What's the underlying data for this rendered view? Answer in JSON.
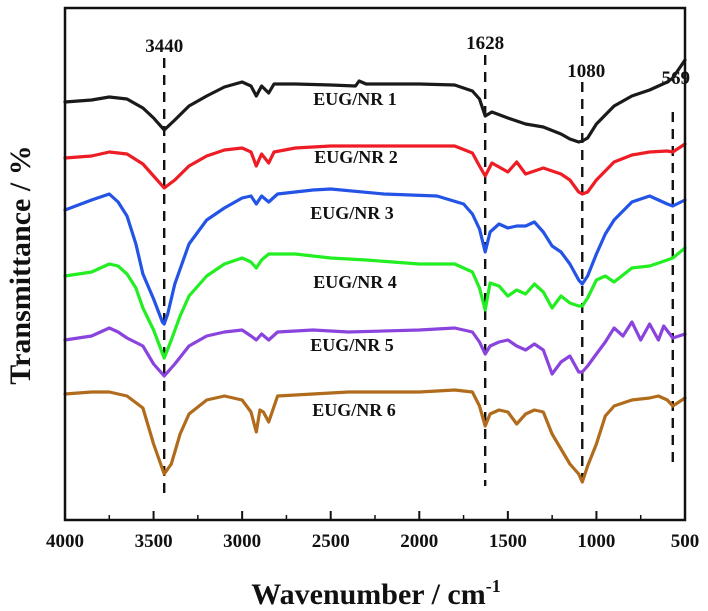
{
  "chart_data": {
    "type": "line",
    "title": "",
    "xlabel": "Wavenumber / cm",
    "xlabel_superscript": "-1",
    "ylabel": "Transmittance / %",
    "xlim": [
      4000,
      500
    ],
    "x_reversed": true,
    "y_ticks_shown": false,
    "grid": false,
    "xticks": [
      4000,
      3500,
      3000,
      2500,
      2000,
      1500,
      1000,
      500
    ],
    "xtick_labels": [
      "4000",
      "3500",
      "3000",
      "2500",
      "2000",
      "1500",
      "1000",
      "500"
    ],
    "peak_markers": [
      {
        "label": "3440",
        "x": 3440
      },
      {
        "label": "1628",
        "x": 1628
      },
      {
        "label": "1080",
        "x": 1080
      },
      {
        "label": "569",
        "x": 569
      }
    ],
    "series": [
      {
        "name": "EUG/NR 1",
        "color": "#1a1a1a",
        "offset": 86,
        "points": [
          [
            4000,
            8
          ],
          [
            3850,
            6
          ],
          [
            3750,
            3
          ],
          [
            3650,
            5
          ],
          [
            3560,
            14
          ],
          [
            3500,
            24
          ],
          [
            3440,
            36
          ],
          [
            3380,
            26
          ],
          [
            3300,
            12
          ],
          [
            3200,
            2
          ],
          [
            3100,
            -7
          ],
          [
            3000,
            -12
          ],
          [
            2950,
            -8
          ],
          [
            2920,
            2
          ],
          [
            2890,
            -8
          ],
          [
            2850,
            -1
          ],
          [
            2820,
            -10
          ],
          [
            2700,
            -10
          ],
          [
            2500,
            -9
          ],
          [
            2360,
            -8
          ],
          [
            2340,
            -13
          ],
          [
            2300,
            -10
          ],
          [
            2000,
            -10
          ],
          [
            1800,
            -9
          ],
          [
            1700,
            -3
          ],
          [
            1660,
            5
          ],
          [
            1628,
            22
          ],
          [
            1590,
            18
          ],
          [
            1500,
            24
          ],
          [
            1400,
            30
          ],
          [
            1300,
            33
          ],
          [
            1200,
            40
          ],
          [
            1150,
            45
          ],
          [
            1100,
            48
          ],
          [
            1080,
            47
          ],
          [
            1050,
            44
          ],
          [
            1000,
            30
          ],
          [
            900,
            12
          ],
          [
            800,
            2
          ],
          [
            700,
            -4
          ],
          [
            600,
            -12
          ],
          [
            569,
            -16
          ],
          [
            500,
            -34
          ]
        ]
      },
      {
        "name": "EUG/NR 2",
        "color": "#ee1c24",
        "offset": 150,
        "points": [
          [
            4000,
            0
          ],
          [
            3850,
            -2
          ],
          [
            3750,
            -6
          ],
          [
            3650,
            -4
          ],
          [
            3560,
            6
          ],
          [
            3500,
            18
          ],
          [
            3440,
            30
          ],
          [
            3380,
            22
          ],
          [
            3300,
            8
          ],
          [
            3200,
            -2
          ],
          [
            3100,
            -8
          ],
          [
            3000,
            -10
          ],
          [
            2950,
            -6
          ],
          [
            2920,
            8
          ],
          [
            2890,
            -4
          ],
          [
            2850,
            5
          ],
          [
            2820,
            -6
          ],
          [
            2700,
            -10
          ],
          [
            2500,
            -12
          ],
          [
            2000,
            -12
          ],
          [
            1800,
            -12
          ],
          [
            1700,
            -5
          ],
          [
            1660,
            8
          ],
          [
            1628,
            18
          ],
          [
            1590,
            5
          ],
          [
            1500,
            14
          ],
          [
            1450,
            4
          ],
          [
            1400,
            16
          ],
          [
            1300,
            10
          ],
          [
            1200,
            16
          ],
          [
            1150,
            22
          ],
          [
            1100,
            34
          ],
          [
            1080,
            36
          ],
          [
            1050,
            34
          ],
          [
            1000,
            22
          ],
          [
            900,
            4
          ],
          [
            800,
            -3
          ],
          [
            700,
            -6
          ],
          [
            600,
            -7
          ],
          [
            569,
            -6
          ],
          [
            500,
            -14
          ]
        ]
      },
      {
        "name": "EUG/NR 3",
        "color": "#2454e6",
        "offset": 206,
        "points": [
          [
            4000,
            -4
          ],
          [
            3850,
            -14
          ],
          [
            3750,
            -20
          ],
          [
            3700,
            -12
          ],
          [
            3650,
            2
          ],
          [
            3600,
            30
          ],
          [
            3560,
            60
          ],
          [
            3500,
            85
          ],
          [
            3450,
            108
          ],
          [
            3440,
            110
          ],
          [
            3420,
            100
          ],
          [
            3380,
            70
          ],
          [
            3300,
            30
          ],
          [
            3200,
            6
          ],
          [
            3100,
            -6
          ],
          [
            3000,
            -16
          ],
          [
            2950,
            -18
          ],
          [
            2920,
            -10
          ],
          [
            2890,
            -18
          ],
          [
            2850,
            -12
          ],
          [
            2800,
            -20
          ],
          [
            2600,
            -24
          ],
          [
            2500,
            -25
          ],
          [
            2200,
            -20
          ],
          [
            1900,
            -18
          ],
          [
            1750,
            -10
          ],
          [
            1700,
            0
          ],
          [
            1660,
            15
          ],
          [
            1628,
            38
          ],
          [
            1600,
            18
          ],
          [
            1550,
            10
          ],
          [
            1500,
            14
          ],
          [
            1450,
            12
          ],
          [
            1400,
            12
          ],
          [
            1350,
            8
          ],
          [
            1300,
            18
          ],
          [
            1250,
            32
          ],
          [
            1200,
            38
          ],
          [
            1150,
            50
          ],
          [
            1100,
            66
          ],
          [
            1080,
            70
          ],
          [
            1050,
            62
          ],
          [
            1000,
            40
          ],
          [
            950,
            20
          ],
          [
            900,
            6
          ],
          [
            800,
            -12
          ],
          [
            700,
            -18
          ],
          [
            600,
            -10
          ],
          [
            569,
            -8
          ],
          [
            500,
            -14
          ]
        ]
      },
      {
        "name": "EUG/NR 4",
        "color": "#22ee22",
        "offset": 260,
        "points": [
          [
            4000,
            8
          ],
          [
            3850,
            4
          ],
          [
            3750,
            -4
          ],
          [
            3700,
            -2
          ],
          [
            3650,
            6
          ],
          [
            3600,
            20
          ],
          [
            3560,
            40
          ],
          [
            3500,
            62
          ],
          [
            3440,
            90
          ],
          [
            3400,
            72
          ],
          [
            3350,
            48
          ],
          [
            3300,
            28
          ],
          [
            3200,
            8
          ],
          [
            3100,
            -4
          ],
          [
            3000,
            -10
          ],
          [
            2950,
            -6
          ],
          [
            2920,
            0
          ],
          [
            2890,
            -8
          ],
          [
            2850,
            -14
          ],
          [
            2700,
            -14
          ],
          [
            2500,
            -10
          ],
          [
            2300,
            -8
          ],
          [
            2000,
            -4
          ],
          [
            1800,
            -4
          ],
          [
            1700,
            4
          ],
          [
            1660,
            20
          ],
          [
            1628,
            42
          ],
          [
            1600,
            15
          ],
          [
            1550,
            18
          ],
          [
            1500,
            28
          ],
          [
            1450,
            22
          ],
          [
            1400,
            26
          ],
          [
            1350,
            16
          ],
          [
            1300,
            24
          ],
          [
            1250,
            40
          ],
          [
            1200,
            28
          ],
          [
            1150,
            35
          ],
          [
            1100,
            38
          ],
          [
            1080,
            38
          ],
          [
            1050,
            30
          ],
          [
            1000,
            12
          ],
          [
            950,
            8
          ],
          [
            900,
            14
          ],
          [
            800,
            0
          ],
          [
            700,
            -2
          ],
          [
            600,
            -8
          ],
          [
            569,
            -10
          ],
          [
            500,
            -20
          ]
        ]
      },
      {
        "name": "EUG/NR 5",
        "color": "#8a44dd",
        "offset": 326,
        "points": [
          [
            4000,
            6
          ],
          [
            3850,
            2
          ],
          [
            3750,
            -6
          ],
          [
            3700,
            -2
          ],
          [
            3650,
            4
          ],
          [
            3560,
            12
          ],
          [
            3500,
            30
          ],
          [
            3440,
            42
          ],
          [
            3380,
            30
          ],
          [
            3300,
            12
          ],
          [
            3200,
            2
          ],
          [
            3100,
            -2
          ],
          [
            3000,
            -4
          ],
          [
            2950,
            2
          ],
          [
            2920,
            6
          ],
          [
            2890,
            0
          ],
          [
            2850,
            6
          ],
          [
            2800,
            -2
          ],
          [
            2600,
            -4
          ],
          [
            2400,
            -2
          ],
          [
            2000,
            -4
          ],
          [
            1800,
            -6
          ],
          [
            1700,
            -2
          ],
          [
            1660,
            8
          ],
          [
            1628,
            20
          ],
          [
            1600,
            12
          ],
          [
            1550,
            8
          ],
          [
            1500,
            6
          ],
          [
            1450,
            12
          ],
          [
            1400,
            16
          ],
          [
            1350,
            10
          ],
          [
            1300,
            16
          ],
          [
            1250,
            40
          ],
          [
            1200,
            28
          ],
          [
            1150,
            22
          ],
          [
            1100,
            38
          ],
          [
            1080,
            38
          ],
          [
            1050,
            32
          ],
          [
            1000,
            20
          ],
          [
            950,
            8
          ],
          [
            900,
            -6
          ],
          [
            850,
            2
          ],
          [
            800,
            -12
          ],
          [
            750,
            6
          ],
          [
            700,
            -10
          ],
          [
            650,
            6
          ],
          [
            620,
            -8
          ],
          [
            569,
            4
          ],
          [
            500,
            0
          ]
        ]
      },
      {
        "name": "EUG/NR 6",
        "color": "#b06b1c",
        "offset": 386,
        "points": [
          [
            4000,
            0
          ],
          [
            3850,
            -2
          ],
          [
            3750,
            -2
          ],
          [
            3650,
            2
          ],
          [
            3560,
            14
          ],
          [
            3500,
            50
          ],
          [
            3440,
            80
          ],
          [
            3400,
            70
          ],
          [
            3350,
            40
          ],
          [
            3300,
            20
          ],
          [
            3200,
            6
          ],
          [
            3100,
            2
          ],
          [
            3000,
            6
          ],
          [
            2950,
            18
          ],
          [
            2920,
            38
          ],
          [
            2900,
            16
          ],
          [
            2880,
            18
          ],
          [
            2850,
            28
          ],
          [
            2800,
            2
          ],
          [
            2600,
            0
          ],
          [
            2400,
            -2
          ],
          [
            2000,
            -2
          ],
          [
            1800,
            -4
          ],
          [
            1700,
            -2
          ],
          [
            1660,
            12
          ],
          [
            1628,
            32
          ],
          [
            1600,
            20
          ],
          [
            1550,
            16
          ],
          [
            1500,
            18
          ],
          [
            1450,
            30
          ],
          [
            1400,
            20
          ],
          [
            1350,
            16
          ],
          [
            1300,
            18
          ],
          [
            1250,
            40
          ],
          [
            1200,
            55
          ],
          [
            1150,
            70
          ],
          [
            1100,
            80
          ],
          [
            1080,
            88
          ],
          [
            1050,
            72
          ],
          [
            1000,
            50
          ],
          [
            950,
            22
          ],
          [
            900,
            12
          ],
          [
            800,
            6
          ],
          [
            700,
            4
          ],
          [
            650,
            2
          ],
          [
            600,
            6
          ],
          [
            569,
            12
          ],
          [
            500,
            4
          ]
        ]
      }
    ]
  }
}
